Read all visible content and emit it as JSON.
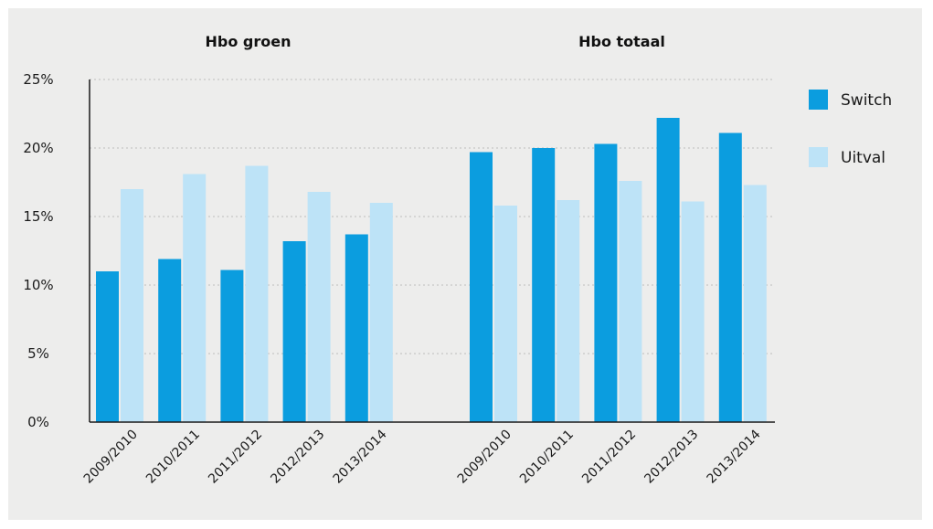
{
  "chart_data": {
    "type": "bar",
    "groups": [
      {
        "title": "Hbo groen",
        "categories": [
          "2009/2010",
          "2010/2011",
          "2011/2012",
          "2012/2013",
          "2013/2014"
        ],
        "series": [
          {
            "name": "Switch",
            "values": [
              11.0,
              11.9,
              11.1,
              13.2,
              13.7
            ]
          },
          {
            "name": "Uitval",
            "values": [
              17.0,
              18.1,
              18.7,
              16.8,
              16.0
            ]
          }
        ]
      },
      {
        "title": "Hbo totaal",
        "categories": [
          "2009/2010",
          "2010/2011",
          "2011/2012",
          "2012/2013",
          "2013/2014"
        ],
        "series": [
          {
            "name": "Switch",
            "values": [
              19.7,
              20.0,
              20.3,
              22.2,
              21.1
            ]
          },
          {
            "name": "Uitval",
            "values": [
              15.8,
              16.2,
              17.6,
              16.1,
              17.3
            ]
          }
        ]
      }
    ],
    "legend": [
      {
        "name": "Switch",
        "color": "#0b9ddf"
      },
      {
        "name": "Uitval",
        "color": "#bde3f7"
      }
    ],
    "yticks": [
      "0%",
      "5%",
      "10%",
      "15%",
      "20%",
      "25%"
    ],
    "ylim": [
      0,
      25
    ],
    "grid": true,
    "legend_position": "right"
  }
}
